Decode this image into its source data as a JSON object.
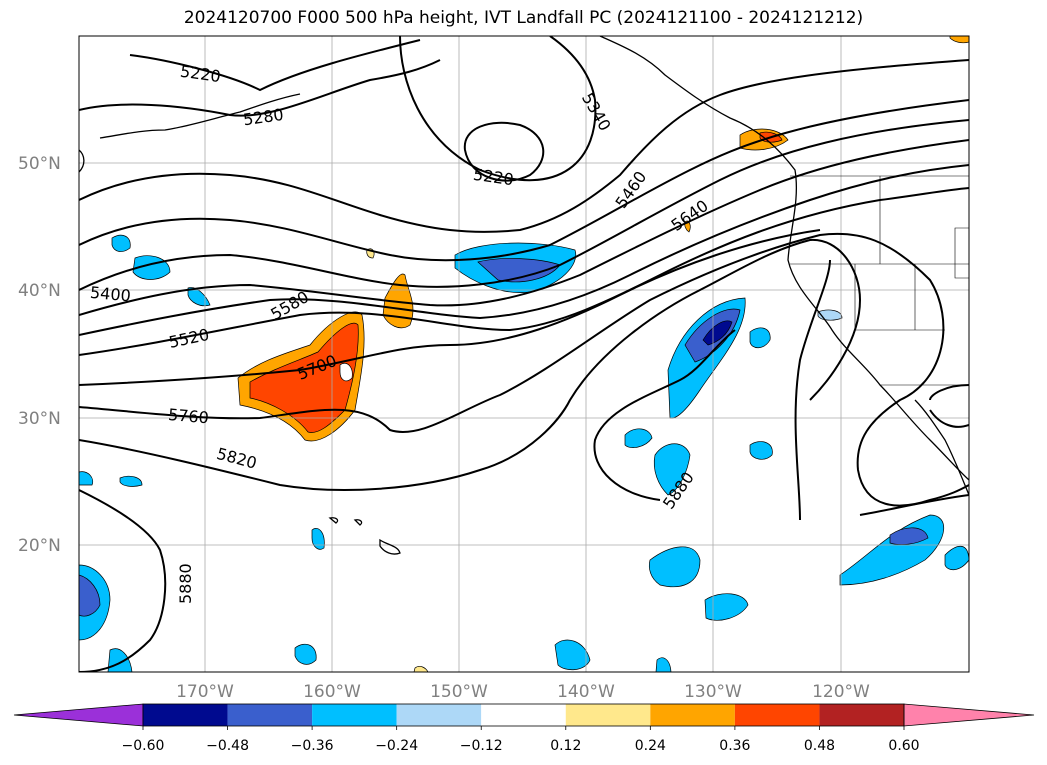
{
  "title": "2024120700 F000 500 hPa height, IVT Landfall PC (2024121100 - 2024121212)",
  "map": {
    "lat_labels": [
      "50°N",
      "40°N",
      "30°N",
      "20°N"
    ],
    "lon_labels": [
      "170°W",
      "160°W",
      "150°W",
      "140°W",
      "130°W",
      "120°W"
    ],
    "contour_labels": [
      {
        "text": "5220",
        "ref": "north-west trough"
      },
      {
        "text": "5280",
        "ref": "north-west"
      },
      {
        "text": "5340",
        "ref": "north-central"
      },
      {
        "text": "5220",
        "ref": "closed low"
      },
      {
        "text": "5460",
        "ref": "north-east"
      },
      {
        "text": "5640",
        "ref": "east"
      },
      {
        "text": "5400",
        "ref": "west"
      },
      {
        "text": "5580",
        "ref": "west-central"
      },
      {
        "text": "5520",
        "ref": "west"
      },
      {
        "text": "5700",
        "ref": "central"
      },
      {
        "text": "5760",
        "ref": "west"
      },
      {
        "text": "5820",
        "ref": "south-west"
      },
      {
        "text": "5880",
        "ref": "south-east"
      },
      {
        "text": "5880",
        "ref": "south-west"
      }
    ]
  },
  "colorbar": {
    "ticks": [
      "−0.60",
      "−0.48",
      "−0.36",
      "−0.24",
      "−0.12",
      "0.12",
      "0.24",
      "0.36",
      "0.48",
      "0.60"
    ],
    "colors": [
      "#9b30d9",
      "#000a8f",
      "#3a5fcd",
      "#00bfff",
      "#add8f7",
      "#ffffff",
      "#ffe88c",
      "#ffa500",
      "#ff4500",
      "#b22222",
      "#ff82ab"
    ]
  }
}
